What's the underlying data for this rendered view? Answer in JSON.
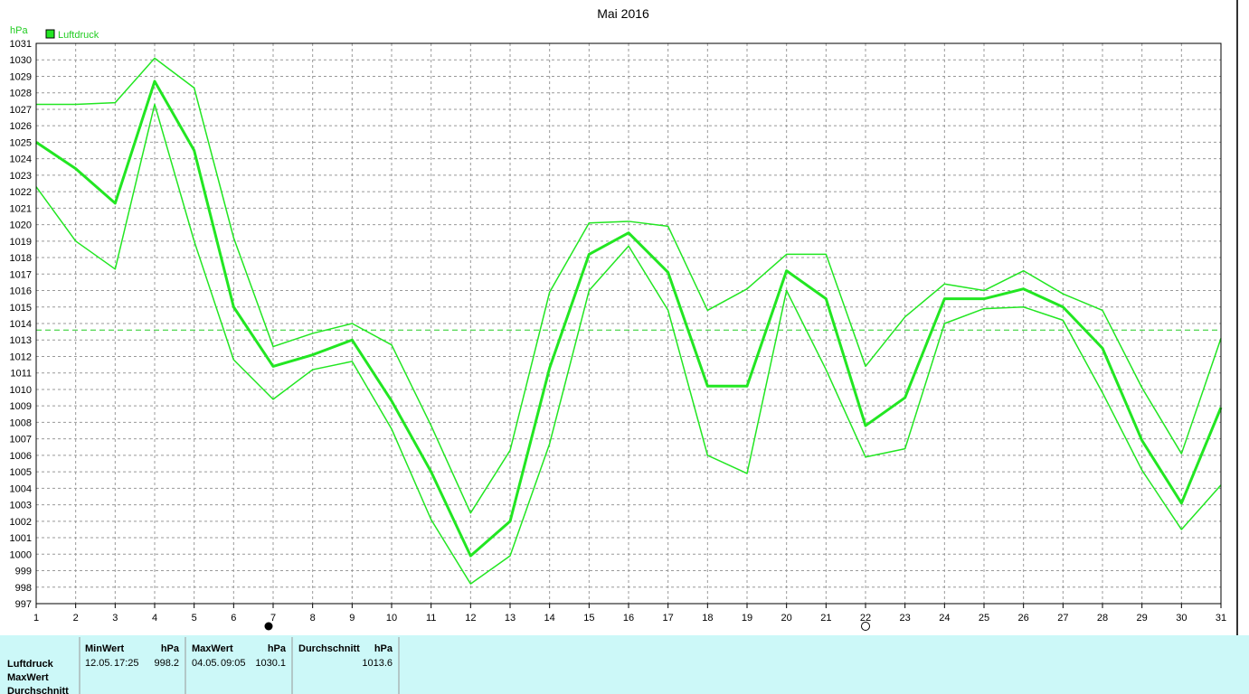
{
  "chart_data": {
    "type": "line",
    "title": "Mai 2016",
    "y_label": "hPa",
    "x": [
      1,
      2,
      3,
      4,
      5,
      6,
      7,
      8,
      9,
      10,
      11,
      12,
      13,
      14,
      15,
      16,
      17,
      18,
      19,
      20,
      21,
      22,
      23,
      24,
      25,
      26,
      27,
      28,
      29,
      30,
      31
    ],
    "xlim": [
      1,
      31
    ],
    "xticks": [
      1,
      2,
      3,
      4,
      5,
      6,
      7,
      8,
      9,
      10,
      11,
      12,
      13,
      14,
      15,
      16,
      17,
      18,
      19,
      20,
      21,
      22,
      23,
      24,
      25,
      26,
      27,
      28,
      29,
      30,
      31
    ],
    "ylim": [
      997,
      1031
    ],
    "yticks": [
      997,
      998,
      999,
      1000,
      1001,
      1002,
      1003,
      1004,
      1005,
      1006,
      1007,
      1008,
      1009,
      1010,
      1011,
      1012,
      1013,
      1014,
      1015,
      1016,
      1017,
      1018,
      1019,
      1020,
      1021,
      1022,
      1023,
      1024,
      1025,
      1026,
      1027,
      1028,
      1029,
      1030,
      1031
    ],
    "grid": true,
    "legend": "top-left",
    "series": [
      {
        "name": "Luftdruck",
        "color": "#22e622",
        "width": 3,
        "values": [
          1025.0,
          1023.4,
          1021.3,
          1028.7,
          1024.5,
          1015.0,
          1011.4,
          1012.1,
          1013.0,
          1009.3,
          1005.0,
          999.9,
          1002.0,
          1011.3,
          1018.2,
          1019.5,
          1017.1,
          1010.2,
          1010.2,
          1017.2,
          1015.5,
          1007.8,
          1009.5,
          1015.5,
          1015.5,
          1016.1,
          1015.0,
          1012.5,
          1006.9,
          1003.1,
          1008.9
        ]
      },
      {
        "color": "#22e622",
        "width": 1.5,
        "values": [
          1027.3,
          1027.3,
          1027.4,
          1030.1,
          1028.3,
          1019.2,
          1012.6,
          1013.4,
          1014.0,
          1012.7,
          1007.8,
          1002.5,
          1006.3,
          1015.9,
          1020.1,
          1020.2,
          1019.9,
          1014.8,
          1016.1,
          1018.2,
          1018.2,
          1011.4,
          1014.4,
          1016.4,
          1016.0,
          1017.2,
          1015.8,
          1014.8,
          1010.1,
          1006.1,
          1013.1
        ]
      },
      {
        "color": "#22e622",
        "width": 1.5,
        "values": [
          1022.3,
          1019.0,
          1017.3,
          1027.3,
          1019.0,
          1011.8,
          1009.4,
          1011.2,
          1011.7,
          1007.6,
          1002.1,
          998.2,
          999.9,
          1006.7,
          1016.0,
          1018.7,
          1014.8,
          1006.0,
          1004.9,
          1016.0,
          1011.2,
          1005.9,
          1006.4,
          1014.0,
          1014.9,
          1015.0,
          1014.2,
          1009.8,
          1005.1,
          1001.5,
          1004.2
        ]
      }
    ]
  },
  "stats": {
    "row_labels": [
      "Luftdruck",
      "MaxWert",
      "Durchschnitt"
    ],
    "columns": [
      {
        "header": "MinWert",
        "unit": "hPa",
        "date": "12.05.",
        "time": "17:25",
        "value": 998.2
      },
      {
        "header": "MaxWert",
        "unit": "hPa",
        "date": "04.05.",
        "time": "09:05",
        "value": 1030.1
      },
      {
        "header": "Durchschnitt",
        "unit": "hPa",
        "value": 1013.6
      }
    ]
  }
}
